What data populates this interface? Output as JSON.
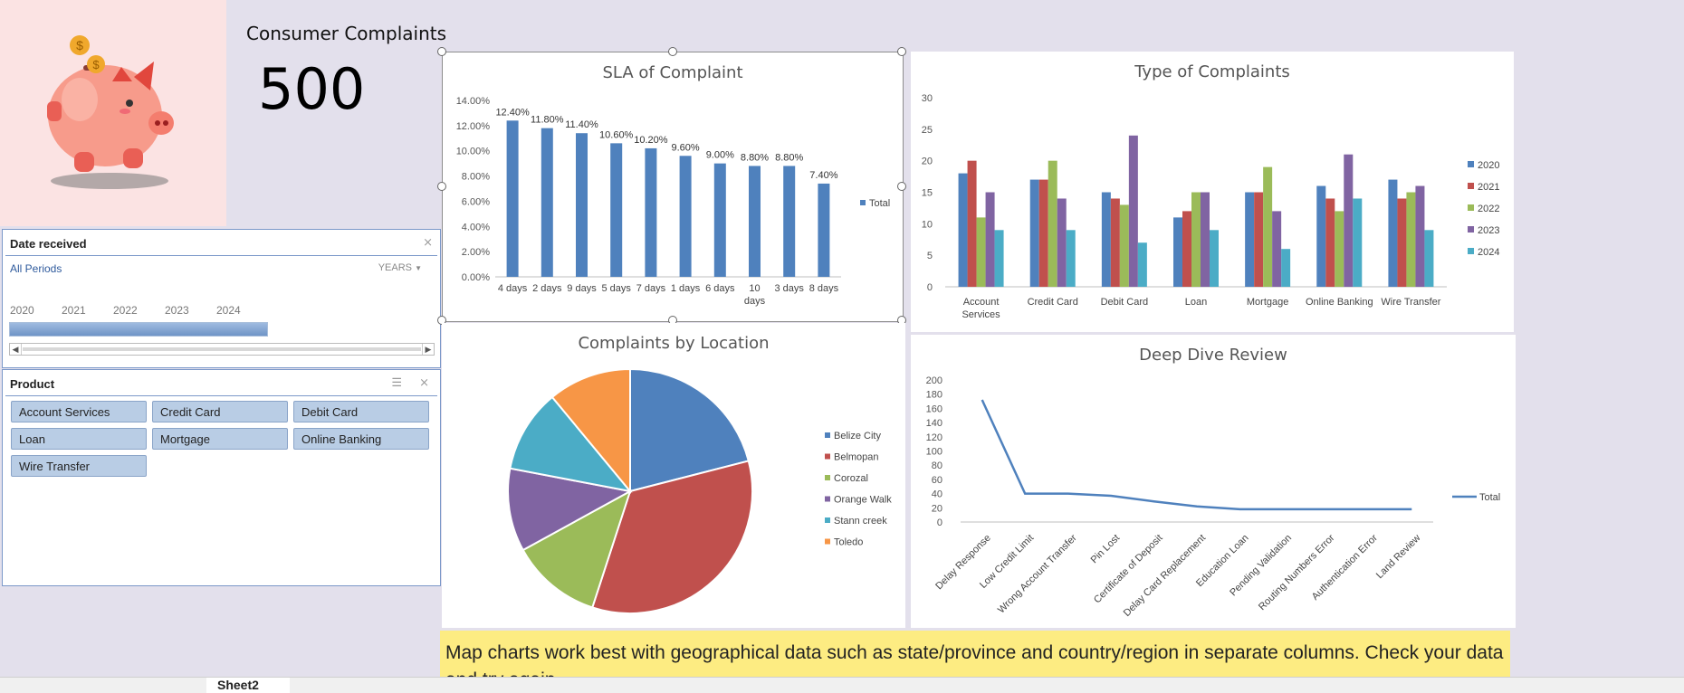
{
  "header": {
    "title": "Consumer Complaints",
    "count": "500"
  },
  "date_slicer": {
    "title": "Date received",
    "period": "All Periods",
    "granularity": "YEARS",
    "years": [
      "2020",
      "2021",
      "2022",
      "2023",
      "2024"
    ]
  },
  "product_slicer": {
    "title": "Product",
    "items": [
      "Account Services",
      "Credit Card",
      "Debit Card",
      "Loan",
      "Mortgage",
      "Online Banking",
      "Wire Transfer"
    ]
  },
  "sheet_tab": {
    "label": "Sheet2"
  },
  "note": "Map charts work best with geographical data such as state/province and country/region in separate columns. Check your data and try again.",
  "colors": {
    "blue": "#4f81bd",
    "red": "#c0504d",
    "green": "#9bbb59",
    "purple": "#8064a2",
    "teal": "#4bacc6",
    "orange": "#f79646"
  },
  "chart_data": [
    {
      "type": "bar",
      "title": "SLA of Complaint",
      "categories": [
        "4 days",
        "2 days",
        "9 days",
        "5 days",
        "7 days",
        "1 days",
        "6 days",
        "10 days",
        "3 days",
        "8 days"
      ],
      "series": [
        {
          "name": "Total",
          "values": [
            12.4,
            11.8,
            11.4,
            10.6,
            10.2,
            9.6,
            9.0,
            8.8,
            8.8,
            7.4
          ]
        }
      ],
      "data_labels": [
        "12.40%",
        "11.80%",
        "11.40%",
        "10.60%",
        "10.20%",
        "9.60%",
        "9.00%",
        "8.80%",
        "8.80%",
        "7.40%"
      ],
      "yticks": [
        "0.00%",
        "2.00%",
        "4.00%",
        "6.00%",
        "8.00%",
        "10.00%",
        "12.00%",
        "14.00%"
      ],
      "ylim": [
        0,
        14
      ],
      "legend": "right"
    },
    {
      "type": "bar",
      "title": "Type of Complaints",
      "categories": [
        "Account Services",
        "Credit Card",
        "Debit Card",
        "Loan",
        "Mortgage",
        "Online Banking",
        "Wire Transfer"
      ],
      "series": [
        {
          "name": "2020",
          "values": [
            18,
            17,
            15,
            11,
            15,
            16,
            17
          ]
        },
        {
          "name": "2021",
          "values": [
            20,
            17,
            14,
            12,
            15,
            14,
            14
          ]
        },
        {
          "name": "2022",
          "values": [
            11,
            20,
            13,
            15,
            19,
            12,
            15
          ]
        },
        {
          "name": "2023",
          "values": [
            15,
            14,
            24,
            15,
            12,
            21,
            16
          ]
        },
        {
          "name": "2024",
          "values": [
            9,
            9,
            7,
            9,
            6,
            14,
            9
          ]
        }
      ],
      "yticks": [
        "0",
        "5",
        "10",
        "15",
        "20",
        "25",
        "30"
      ],
      "ylim": [
        0,
        30
      ],
      "legend": "right"
    },
    {
      "type": "pie",
      "title": "Complaints by Location",
      "categories": [
        "Belize City",
        "Belmopan",
        "Corozal",
        "Orange Walk",
        "Stann creek",
        "Toledo"
      ],
      "values": [
        21,
        34,
        12,
        11,
        11,
        11
      ],
      "legend": "right"
    },
    {
      "type": "line",
      "title": "Deep Dive Review",
      "categories": [
        "Delay Response",
        "Low Credit Limit",
        "Wrong Account Transfer",
        "Pin Lost",
        "Certificate of Deposit",
        "Delay Card Replacement",
        "Education Loan",
        "Pending Validation",
        "Routing Numbers Error",
        "Authentication Error",
        "Land Review"
      ],
      "series": [
        {
          "name": "Total",
          "values": [
            172,
            40,
            40,
            37,
            29,
            22,
            18,
            18,
            18,
            18,
            18
          ]
        }
      ],
      "yticks": [
        "0",
        "20",
        "40",
        "60",
        "80",
        "100",
        "120",
        "140",
        "160",
        "180",
        "200"
      ],
      "ylim": [
        0,
        200
      ],
      "legend": "right"
    }
  ]
}
